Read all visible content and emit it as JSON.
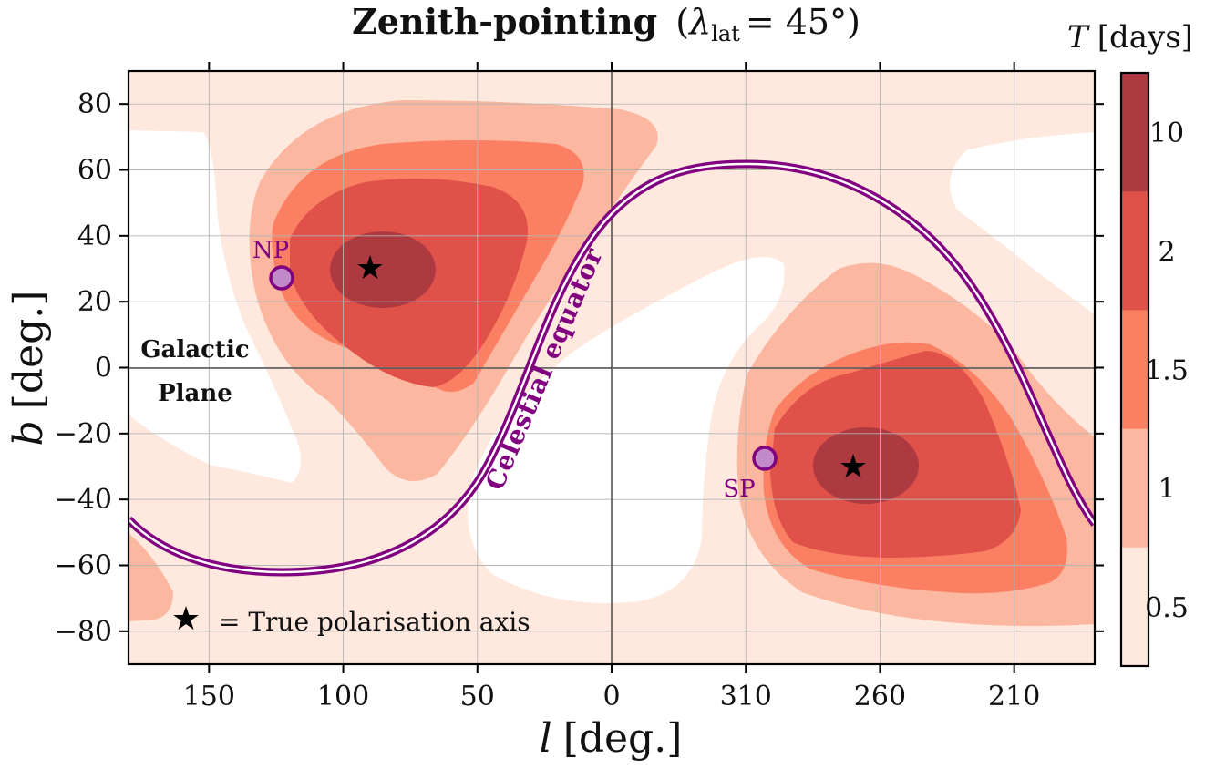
{
  "chart_data": {
    "type": "contour",
    "title": "Zenith-pointing",
    "title_param_symbol": "λ",
    "title_param_subscript": "lat",
    "title_param_value": "= 45°)",
    "title_paren_open": "(",
    "xlabel_symbol": "l",
    "xlabel_unit": "[deg.]",
    "ylabel_symbol": "b",
    "ylabel_unit": "[deg.]",
    "xlim_deg": [
      180,
      -180
    ],
    "ylim": [
      -90,
      90
    ],
    "x_tick_labels": [
      "150",
      "100",
      "50",
      "0",
      "310",
      "260",
      "210"
    ],
    "x_tick_values_l": [
      150,
      100,
      50,
      0,
      310,
      260,
      210
    ],
    "y_tick_labels": [
      "80",
      "60",
      "40",
      "20",
      "0",
      "−20",
      "−40",
      "−60",
      "−80"
    ],
    "y_tick_values": [
      80,
      60,
      40,
      20,
      0,
      -20,
      -40,
      -60,
      -80
    ],
    "grid": true,
    "colorbar": {
      "title_symbol": "T",
      "title_unit": "[days]",
      "labels": [
        "10",
        "2",
        "1.5",
        "1",
        "0.5"
      ],
      "colors": [
        "#ad3a41",
        "#e0514a",
        "#fb8063",
        "#fbb79f",
        "#ffe8de"
      ]
    },
    "background_color": "#ffffff",
    "markers": {
      "true_axis_stars": [
        {
          "l": 90,
          "b": 30
        },
        {
          "l": 270,
          "b": -30
        }
      ],
      "NP": {
        "label": "NP",
        "l": 123,
        "b": 27
      },
      "SP": {
        "label": "SP",
        "l": 303,
        "b": -27
      }
    },
    "annotations": {
      "galactic_plane_line1": "Galactic",
      "galactic_plane_line2": "Plane",
      "celestial_equator": "Celestial equator",
      "legend_text": "= True polarisation axis"
    },
    "accent_color": "#800080"
  }
}
